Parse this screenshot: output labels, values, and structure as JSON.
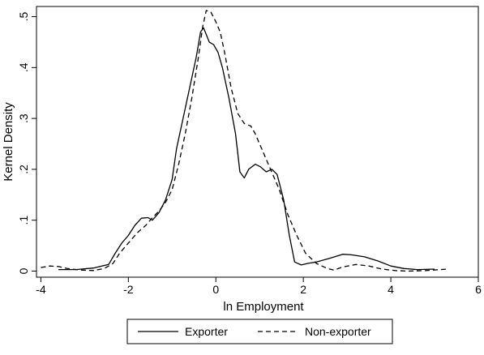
{
  "chart_data": {
    "type": "line",
    "title": "",
    "xlabel": "ln Employment",
    "ylabel": "Kernel Density",
    "xlim": [
      -4.1,
      6.0
    ],
    "ylim": [
      -0.012,
      0.52
    ],
    "xticks": [
      -4,
      -2,
      0,
      2,
      4,
      6
    ],
    "xtick_labels": [
      "-4",
      "-2",
      "0",
      "2",
      "4",
      "6"
    ],
    "yticks": [
      0,
      0.1,
      0.2,
      0.3,
      0.4,
      0.5
    ],
    "ytick_labels": [
      "0",
      ".1",
      ".2",
      ".3",
      ".4",
      ".5"
    ],
    "grid": false,
    "legend_position": "bottom",
    "series": [
      {
        "name": "Exporter",
        "style": "solid",
        "color": "#000000",
        "points": [
          [
            -3.6,
            0.003
          ],
          [
            -3.2,
            0.003
          ],
          [
            -2.8,
            0.006
          ],
          [
            -2.45,
            0.013
          ],
          [
            -2.3,
            0.035
          ],
          [
            -2.15,
            0.055
          ],
          [
            -2.0,
            0.07
          ],
          [
            -1.85,
            0.09
          ],
          [
            -1.7,
            0.104
          ],
          [
            -1.55,
            0.105
          ],
          [
            -1.45,
            0.1
          ],
          [
            -1.3,
            0.115
          ],
          [
            -1.15,
            0.14
          ],
          [
            -1.0,
            0.18
          ],
          [
            -0.9,
            0.24
          ],
          [
            -0.75,
            0.3
          ],
          [
            -0.6,
            0.36
          ],
          [
            -0.45,
            0.42
          ],
          [
            -0.35,
            0.47
          ],
          [
            -0.28,
            0.478
          ],
          [
            -0.22,
            0.465
          ],
          [
            -0.15,
            0.45
          ],
          [
            -0.05,
            0.445
          ],
          [
            0.05,
            0.43
          ],
          [
            0.15,
            0.4
          ],
          [
            0.3,
            0.34
          ],
          [
            0.45,
            0.27
          ],
          [
            0.55,
            0.195
          ],
          [
            0.65,
            0.183
          ],
          [
            0.75,
            0.2
          ],
          [
            0.9,
            0.21
          ],
          [
            1.02,
            0.205
          ],
          [
            1.15,
            0.195
          ],
          [
            1.28,
            0.2
          ],
          [
            1.4,
            0.19
          ],
          [
            1.55,
            0.14
          ],
          [
            1.68,
            0.07
          ],
          [
            1.8,
            0.018
          ],
          [
            1.95,
            0.012
          ],
          [
            2.1,
            0.015
          ],
          [
            2.3,
            0.018
          ],
          [
            2.6,
            0.025
          ],
          [
            2.9,
            0.033
          ],
          [
            3.1,
            0.032
          ],
          [
            3.4,
            0.028
          ],
          [
            3.7,
            0.02
          ],
          [
            4.0,
            0.01
          ],
          [
            4.3,
            0.005
          ],
          [
            4.6,
            0.003
          ],
          [
            5.0,
            0.004
          ]
        ]
      },
      {
        "name": "Non-exporter",
        "style": "dashed",
        "color": "#000000",
        "points": [
          [
            -4.0,
            0.007
          ],
          [
            -3.8,
            0.01
          ],
          [
            -3.6,
            0.009
          ],
          [
            -3.4,
            0.005
          ],
          [
            -3.1,
            0.002
          ],
          [
            -2.8,
            0.001
          ],
          [
            -2.55,
            0.005
          ],
          [
            -2.35,
            0.015
          ],
          [
            -2.2,
            0.035
          ],
          [
            -2.0,
            0.055
          ],
          [
            -1.8,
            0.075
          ],
          [
            -1.6,
            0.09
          ],
          [
            -1.45,
            0.105
          ],
          [
            -1.3,
            0.118
          ],
          [
            -1.15,
            0.135
          ],
          [
            -1.0,
            0.16
          ],
          [
            -0.85,
            0.21
          ],
          [
            -0.7,
            0.27
          ],
          [
            -0.55,
            0.34
          ],
          [
            -0.4,
            0.42
          ],
          [
            -0.3,
            0.48
          ],
          [
            -0.22,
            0.512
          ],
          [
            -0.12,
            0.51
          ],
          [
            0.0,
            0.49
          ],
          [
            0.1,
            0.47
          ],
          [
            0.2,
            0.43
          ],
          [
            0.35,
            0.36
          ],
          [
            0.5,
            0.31
          ],
          [
            0.65,
            0.29
          ],
          [
            0.8,
            0.285
          ],
          [
            0.9,
            0.27
          ],
          [
            1.05,
            0.24
          ],
          [
            1.25,
            0.2
          ],
          [
            1.45,
            0.16
          ],
          [
            1.65,
            0.11
          ],
          [
            1.85,
            0.07
          ],
          [
            2.05,
            0.035
          ],
          [
            2.3,
            0.015
          ],
          [
            2.55,
            0.005
          ],
          [
            2.7,
            0.002
          ],
          [
            2.9,
            0.008
          ],
          [
            3.2,
            0.013
          ],
          [
            3.5,
            0.01
          ],
          [
            3.8,
            0.004
          ],
          [
            4.1,
            0.001
          ],
          [
            4.4,
            0.0
          ],
          [
            4.8,
            0.001
          ],
          [
            5.3,
            0.004
          ]
        ]
      }
    ]
  }
}
